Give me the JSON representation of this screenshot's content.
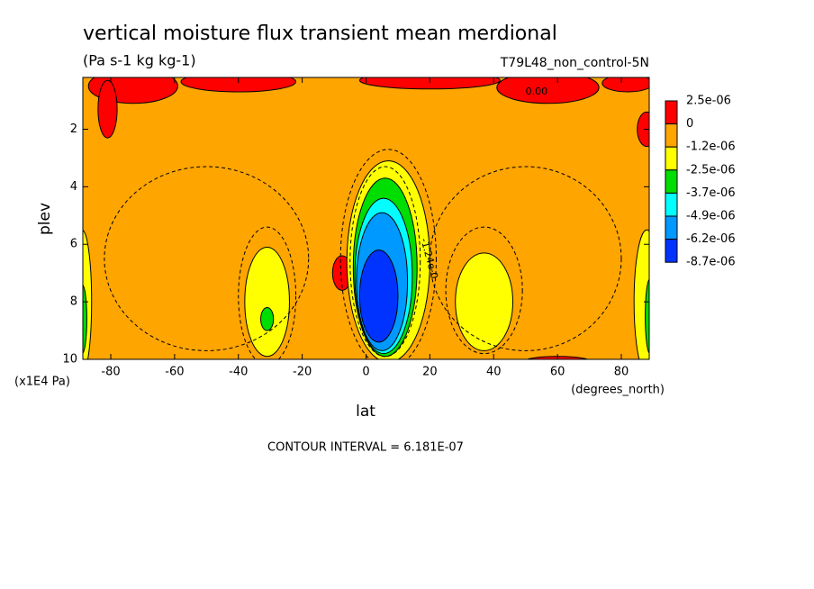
{
  "chart_data": {
    "type": "contour",
    "title": "vertical moisture flux transient mean merdional",
    "subtitle": "(Pa s-1 kg kg-1)",
    "dataset": "T79L48_non_control-5N",
    "x_label": "lat",
    "x_units": "(degrees_north)",
    "y_label": "plev",
    "y_units": "(x1E4 Pa)",
    "xlim": [
      -88.75,
      88.75
    ],
    "xticks": [
      -80,
      -60,
      -40,
      -20,
      0,
      20,
      40,
      60,
      80
    ],
    "ylim": [
      10,
      0.2
    ],
    "yticks": [
      2,
      4,
      6,
      8,
      10
    ],
    "colorbar": {
      "levels": [
        {
          "value": 2.5e-06,
          "label": "2.5e-06"
        },
        0,
        {
          "value": -1.2e-06,
          "label": "-1.2e-06"
        },
        {
          "value": -2.5e-06,
          "label": "-2.5e-06"
        },
        {
          "value": -3.7e-06,
          "label": "-3.7e-06"
        },
        {
          "value": -4.9e-06,
          "label": "-4.9e-06"
        },
        {
          "value": -6.2e-06,
          "label": "-6.2e-06"
        },
        {
          "value": -8.7e-06,
          "label": "-8.7e-06"
        }
      ],
      "colors": [
        "#ff0000",
        "#ffa500",
        "#ffff00",
        "#00dd00",
        "#00ffff",
        "#0099ff",
        "#0033ff"
      ]
    },
    "contour_labels": [
      "0.00",
      "-1.24e-0"
    ],
    "footnote": "CONTOUR INTERVAL = 6.181E-07"
  }
}
